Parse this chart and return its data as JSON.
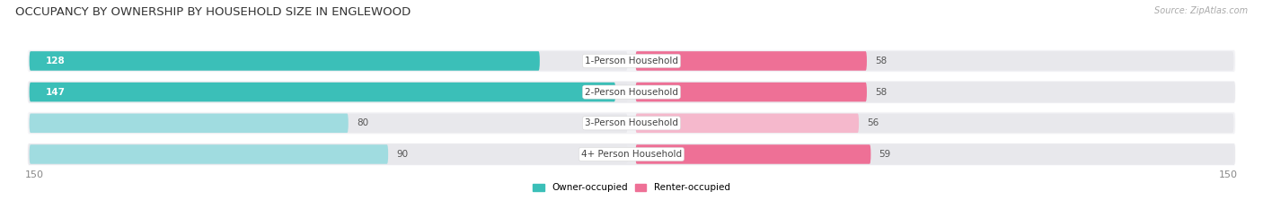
{
  "title": "OCCUPANCY BY OWNERSHIP BY HOUSEHOLD SIZE IN ENGLEWOOD",
  "source": "Source: ZipAtlas.com",
  "categories": [
    "1-Person Household",
    "2-Person Household",
    "3-Person Household",
    "4+ Person Household"
  ],
  "owner_values": [
    128,
    147,
    80,
    90
  ],
  "renter_values": [
    58,
    58,
    56,
    59
  ],
  "owner_color_dark": "#3BBFB8",
  "renter_color_dark": "#EE7096",
  "owner_color_light": "#A0DCE0",
  "renter_color_light": "#F5B8CC",
  "track_color": "#E8E8EC",
  "row_bg_colors": [
    "#F2F2F5",
    "#EAEAEE",
    "#F2F2F5",
    "#EAEAEE"
  ],
  "axis_max": 150,
  "legend_owner": "Owner-occupied",
  "legend_renter": "Renter-occupied",
  "title_fontsize": 9.5,
  "label_fontsize": 7.5,
  "value_fontsize": 7.5,
  "axis_fontsize": 8,
  "source_fontsize": 7
}
